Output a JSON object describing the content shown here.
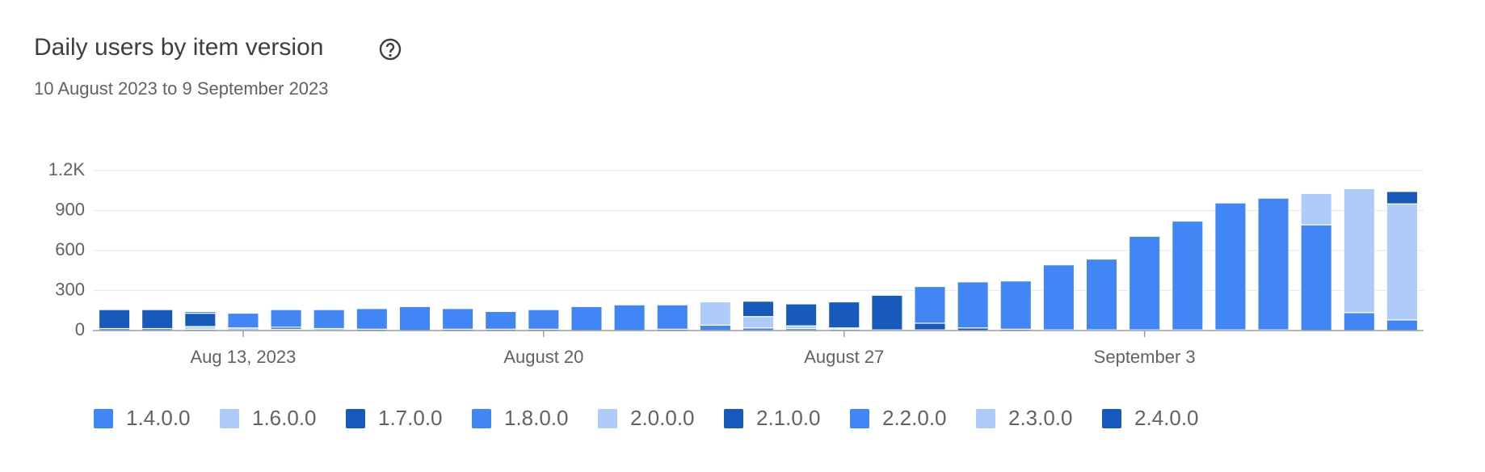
{
  "chart_data": {
    "type": "stacked-bar",
    "title": "Daily users by item version",
    "subtitle": "10 August 2023 to 9 September 2023",
    "categories": [
      null,
      null,
      null,
      "Aug 13, 2023",
      null,
      null,
      null,
      null,
      null,
      null,
      "August 20",
      null,
      null,
      null,
      null,
      null,
      null,
      "August 27",
      null,
      null,
      null,
      null,
      null,
      null,
      "September 3",
      null,
      null,
      null,
      null,
      null,
      null
    ],
    "ylim": [
      0,
      1200
    ],
    "yticks": [
      0,
      300,
      600,
      900,
      {
        "value": 1200,
        "label": "1.2K"
      }
    ],
    "grid": true,
    "legend": "bottom",
    "series": [
      {
        "name": "1.4.0.0",
        "color": "#4285f4",
        "values": [
          15,
          15,
          10,
          0,
          0,
          0,
          0,
          0,
          0,
          0,
          0,
          0,
          0,
          0,
          0,
          0,
          0,
          0,
          0,
          0,
          0,
          0,
          0,
          0,
          0,
          0,
          0,
          0,
          0,
          0,
          0
        ]
      },
      {
        "name": "1.6.0.0",
        "color": "#aecbfa",
        "values": [
          0,
          0,
          20,
          20,
          10,
          15,
          0,
          0,
          0,
          0,
          0,
          0,
          0,
          0,
          0,
          0,
          0,
          0,
          0,
          0,
          0,
          0,
          0,
          0,
          0,
          0,
          0,
          0,
          0,
          0,
          0
        ]
      },
      {
        "name": "1.7.0.0",
        "color": "#185abc",
        "values": [
          142,
          142,
          100,
          0,
          15,
          0,
          10,
          0,
          10,
          10,
          10,
          0,
          0,
          10,
          0,
          0,
          0,
          0,
          0,
          0,
          0,
          0,
          0,
          0,
          0,
          0,
          0,
          0,
          0,
          0,
          0
        ]
      },
      {
        "name": "1.8.0.0",
        "color": "#4285f4",
        "values": [
          0,
          0,
          13,
          110,
          132,
          142,
          155,
          180,
          155,
          133,
          147,
          180,
          193,
          183,
          40,
          20,
          15,
          10,
          5,
          5,
          0,
          0,
          0,
          0,
          0,
          0,
          0,
          0,
          0,
          0,
          0
        ]
      },
      {
        "name": "2.0.0.0",
        "color": "#aecbfa",
        "values": [
          0,
          0,
          0,
          0,
          0,
          0,
          0,
          0,
          0,
          0,
          0,
          0,
          0,
          0,
          175,
          85,
          20,
          10,
          0,
          0,
          0,
          0,
          0,
          0,
          0,
          0,
          0,
          0,
          0,
          0,
          0
        ]
      },
      {
        "name": "2.1.0.0",
        "color": "#185abc",
        "values": [
          0,
          0,
          0,
          0,
          0,
          0,
          0,
          0,
          0,
          0,
          0,
          0,
          0,
          0,
          0,
          115,
          165,
          195,
          260,
          50,
          20,
          10,
          5,
          5,
          5,
          5,
          5,
          5,
          0,
          0,
          0
        ]
      },
      {
        "name": "2.2.0.0",
        "color": "#4285f4",
        "values": [
          0,
          0,
          0,
          0,
          0,
          0,
          0,
          0,
          0,
          0,
          0,
          0,
          0,
          0,
          0,
          0,
          0,
          0,
          0,
          275,
          345,
          362,
          488,
          531,
          702,
          816,
          952,
          988,
          793,
          135,
          80
        ]
      },
      {
        "name": "2.3.0.0",
        "color": "#aecbfa",
        "values": [
          0,
          0,
          0,
          0,
          0,
          0,
          0,
          0,
          0,
          0,
          0,
          0,
          0,
          0,
          0,
          0,
          0,
          0,
          0,
          0,
          0,
          0,
          0,
          0,
          0,
          0,
          0,
          0,
          235,
          929,
          870
        ]
      },
      {
        "name": "2.4.0.0",
        "color": "#185abc",
        "values": [
          0,
          0,
          0,
          0,
          0,
          0,
          0,
          0,
          0,
          0,
          0,
          0,
          0,
          0,
          0,
          0,
          0,
          0,
          0,
          0,
          0,
          0,
          0,
          0,
          0,
          0,
          0,
          0,
          0,
          0,
          93
        ]
      }
    ]
  }
}
